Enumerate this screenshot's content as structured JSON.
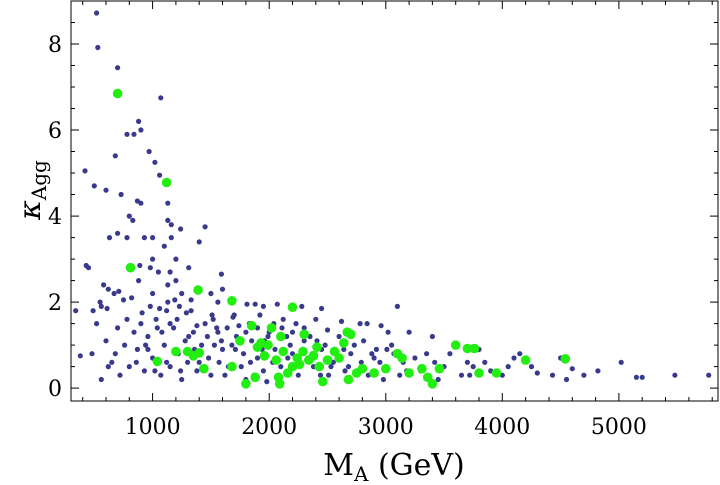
{
  "chart_data": {
    "type": "scatter",
    "title": "",
    "xlabel_main": "M",
    "xlabel_sub": "A",
    "xlabel_unit": " (GeV)",
    "ylabel_main": "κ",
    "ylabel_sub": "Agg",
    "xlim": [
      300,
      5850
    ],
    "ylim": [
      -0.3,
      9.0
    ],
    "xticks": [
      1000,
      2000,
      3000,
      4000,
      5000
    ],
    "xtick_labels": [
      "1000",
      "2000",
      "3000",
      "4000",
      "5000"
    ],
    "yticks": [
      0,
      2,
      4,
      6,
      8
    ],
    "ytick_labels": [
      "0",
      "2",
      "4",
      "6",
      "8"
    ],
    "colors": {
      "blue": "#3a3a8c",
      "green": "#22ee11",
      "axis": "#000000"
    },
    "series": [
      {
        "name": "blue",
        "color": "#3a3a8c",
        "marker_size": "small",
        "points": [
          [
            520,
            8.72
          ],
          [
            530,
            7.92
          ],
          [
            700,
            7.45
          ],
          [
            1070,
            6.75
          ],
          [
            880,
            6.2
          ],
          [
            900,
            6.0
          ],
          [
            780,
            5.9
          ],
          [
            840,
            5.9
          ],
          [
            680,
            5.4
          ],
          [
            970,
            5.5
          ],
          [
            1020,
            5.25
          ],
          [
            1060,
            4.95
          ],
          [
            420,
            5.05
          ],
          [
            500,
            4.7
          ],
          [
            600,
            4.6
          ],
          [
            870,
            4.35
          ],
          [
            900,
            4.3
          ],
          [
            1130,
            4.3
          ],
          [
            730,
            4.5
          ],
          [
            800,
            4.0
          ],
          [
            830,
            3.9
          ],
          [
            1130,
            3.9
          ],
          [
            1160,
            3.8
          ],
          [
            1240,
            3.7
          ],
          [
            1450,
            3.75
          ],
          [
            630,
            3.5
          ],
          [
            700,
            3.6
          ],
          [
            780,
            3.5
          ],
          [
            930,
            3.5
          ],
          [
            1000,
            3.5
          ],
          [
            1160,
            3.5
          ],
          [
            1400,
            3.4
          ],
          [
            1100,
            3.3
          ],
          [
            1000,
            3.0
          ],
          [
            1200,
            3.0
          ],
          [
            430,
            2.85
          ],
          [
            450,
            2.8
          ],
          [
            890,
            2.85
          ],
          [
            980,
            2.8
          ],
          [
            1310,
            2.8
          ],
          [
            1050,
            2.7
          ],
          [
            1150,
            2.7
          ],
          [
            1590,
            2.65
          ],
          [
            1200,
            2.5
          ],
          [
            880,
            2.5
          ],
          [
            1130,
            2.4
          ],
          [
            1600,
            2.3
          ],
          [
            580,
            2.4
          ],
          [
            620,
            2.3
          ],
          [
            670,
            2.2
          ],
          [
            710,
            2.25
          ],
          [
            1000,
            2.2
          ],
          [
            1250,
            2.2
          ],
          [
            1500,
            2.2
          ],
          [
            550,
            2.0
          ],
          [
            750,
            2.05
          ],
          [
            1190,
            2.05
          ],
          [
            1330,
            2.05
          ],
          [
            1560,
            2.0
          ],
          [
            1810,
            1.95
          ],
          [
            1880,
            1.95
          ],
          [
            1950,
            1.9
          ],
          [
            2070,
            1.95
          ],
          [
            2280,
            1.9
          ],
          [
            3100,
            1.9
          ],
          [
            560,
            1.9
          ],
          [
            1060,
            1.85
          ],
          [
            1120,
            1.8
          ],
          [
            1230,
            1.9
          ],
          [
            2450,
            1.85
          ],
          [
            340,
            1.8
          ],
          [
            490,
            1.8
          ],
          [
            610,
            1.85
          ],
          [
            910,
            1.75
          ],
          [
            1290,
            1.75
          ],
          [
            1510,
            1.7
          ],
          [
            1690,
            1.65
          ],
          [
            2120,
            1.6
          ],
          [
            2620,
            1.55
          ],
          [
            2780,
            1.5
          ],
          [
            2840,
            1.5
          ],
          [
            2960,
            1.45
          ],
          [
            1040,
            1.4
          ],
          [
            1150,
            1.5
          ],
          [
            1380,
            1.45
          ],
          [
            1550,
            1.4
          ],
          [
            1740,
            1.45
          ],
          [
            1900,
            1.4
          ],
          [
            2300,
            1.4
          ],
          [
            2500,
            1.35
          ],
          [
            3020,
            1.3
          ],
          [
            3200,
            1.3
          ],
          [
            3400,
            1.2
          ],
          [
            3600,
            1.0
          ],
          [
            3800,
            0.9
          ],
          [
            4150,
            0.8
          ],
          [
            4500,
            0.7
          ],
          [
            4700,
            0.3
          ],
          [
            4820,
            0.4
          ],
          [
            5020,
            0.6
          ],
          [
            5150,
            0.25
          ],
          [
            5480,
            0.3
          ],
          [
            5770,
            0.3
          ],
          [
            5200,
            0.25
          ],
          [
            4550,
            0.2
          ],
          [
            4430,
            0.3
          ],
          [
            4300,
            0.35
          ],
          [
            4000,
            0.3
          ],
          [
            4050,
            0.5
          ],
          [
            3900,
            0.4
          ],
          [
            3700,
            0.6
          ],
          [
            3650,
            0.3
          ],
          [
            3500,
            0.5
          ],
          [
            3450,
            0.2
          ],
          [
            3300,
            0.4
          ],
          [
            3150,
            0.6
          ],
          [
            3000,
            0.5
          ],
          [
            2900,
            0.7
          ],
          [
            2850,
            0.3
          ],
          [
            2700,
            0.8
          ],
          [
            2650,
            0.4
          ],
          [
            2550,
            0.6
          ],
          [
            2450,
            0.9
          ],
          [
            2380,
            0.5
          ],
          [
            2300,
            1.1
          ],
          [
            2250,
            0.3
          ],
          [
            2200,
            0.8
          ],
          [
            2150,
            1.2
          ],
          [
            2100,
            0.5
          ],
          [
            2050,
            0.9
          ],
          [
            2000,
            1.3
          ],
          [
            1950,
            0.4
          ],
          [
            1900,
            0.7
          ],
          [
            1850,
            1.1
          ],
          [
            1800,
            0.2
          ],
          [
            1780,
            0.8
          ],
          [
            1720,
            1.2
          ],
          [
            1650,
            0.5
          ],
          [
            1600,
            0.9
          ],
          [
            1560,
            1.3
          ],
          [
            1500,
            0.3
          ],
          [
            1480,
            0.7
          ],
          [
            1420,
            1.0
          ],
          [
            1380,
            0.4
          ],
          [
            1350,
            1.3
          ],
          [
            1300,
            0.6
          ],
          [
            1280,
            1.1
          ],
          [
            1250,
            0.2
          ],
          [
            1220,
            0.8
          ],
          [
            1180,
            1.4
          ],
          [
            1150,
            0.5
          ],
          [
            1100,
            1.0
          ],
          [
            1070,
            0.3
          ],
          [
            1030,
            1.6
          ],
          [
            1000,
            0.7
          ],
          [
            960,
            1.2
          ],
          [
            930,
            0.4
          ],
          [
            900,
            1.5
          ],
          [
            870,
            0.9
          ],
          [
            840,
            1.3
          ],
          [
            800,
            0.5
          ],
          [
            760,
            1.0
          ],
          [
            720,
            0.3
          ],
          [
            700,
            1.4
          ],
          [
            650,
            0.6
          ],
          [
            600,
            1.1
          ],
          [
            560,
            0.2
          ],
          [
            520,
            1.5
          ],
          [
            480,
            0.8
          ],
          [
            380,
            0.75
          ],
          [
            1700,
            1.7
          ],
          [
            1830,
            1.5
          ],
          [
            2400,
            1.6
          ],
          [
            2600,
            1.2
          ],
          [
            3050,
            1.0
          ],
          [
            3250,
            0.7
          ],
          [
            3550,
            0.8
          ],
          [
            3750,
            0.5
          ],
          [
            1940,
            0.9
          ],
          [
            2030,
            0.6
          ],
          [
            2180,
            1.0
          ],
          [
            2330,
            0.7
          ],
          [
            2480,
            1.0
          ],
          [
            2730,
            1.0
          ],
          [
            2920,
            0.9
          ],
          [
            3120,
            0.3
          ],
          [
            3350,
            0.8
          ],
          [
            3850,
            0.6
          ],
          [
            4250,
            0.5
          ],
          [
            4600,
            0.45
          ],
          [
            1400,
            0.6
          ],
          [
            1530,
            1.0
          ],
          [
            1620,
            0.3
          ],
          [
            1760,
            0.5
          ],
          [
            1870,
            0.3
          ],
          [
            1980,
            0.15
          ],
          [
            2080,
            0.3
          ],
          [
            2260,
            0.6
          ],
          [
            2510,
            0.3
          ],
          [
            2790,
            0.6
          ],
          [
            2980,
            0.2
          ],
          [
            3180,
            0.4
          ],
          [
            3420,
            0.6
          ],
          [
            3720,
            0.3
          ],
          [
            4100,
            0.7
          ],
          [
            960,
            0.9
          ],
          [
            1080,
            1.3
          ],
          [
            1210,
            1.6
          ],
          [
            1330,
            1.8
          ],
          [
            1450,
            1.5
          ],
          [
            1590,
            1.1
          ],
          [
            1710,
            0.9
          ],
          [
            1840,
            0.6
          ],
          [
            1960,
            1.1
          ],
          [
            2110,
            1.4
          ],
          [
            2230,
            1.5
          ],
          [
            2350,
            1.2
          ],
          [
            2440,
            0.3
          ],
          [
            2560,
            0.9
          ],
          [
            2680,
            0.5
          ],
          [
            2810,
            1.1
          ],
          [
            2950,
            0.6
          ],
          [
            3070,
            0.8
          ],
          [
            1240,
            0.4
          ],
          [
            1360,
            0.9
          ],
          [
            1470,
            1.2
          ],
          [
            1570,
            0.6
          ],
          [
            1680,
            1.0
          ],
          [
            1800,
            1.3
          ],
          [
            1920,
            1.7
          ],
          [
            2040,
            1.5
          ],
          [
            2160,
            0.7
          ],
          [
            2290,
            0.9
          ],
          [
            2410,
            1.1
          ],
          [
            2530,
            0.5
          ],
          [
            2640,
            0.9
          ],
          [
            2760,
            0.4
          ],
          [
            2880,
            0.8
          ],
          [
            3010,
            0.9
          ],
          [
            1120,
            0.6
          ],
          [
            1020,
            0.4
          ],
          [
            940,
            1.0
          ],
          [
            860,
            0.6
          ],
          [
            780,
            1.6
          ],
          [
            680,
            0.8
          ],
          [
            620,
            0.5
          ],
          [
            820,
            2.1
          ],
          [
            980,
            1.9
          ],
          [
            1130,
            2.0
          ],
          [
            1310,
            1.2
          ],
          [
            1520,
            1.6
          ],
          [
            1640,
            1.4
          ],
          [
            1990,
            1.2
          ],
          [
            2200,
            1.3
          ],
          [
            2370,
            0.8
          ]
        ]
      },
      {
        "name": "green",
        "color": "#22ee11",
        "marker_size": "large",
        "points": [
          [
            700,
            6.85
          ],
          [
            1120,
            4.78
          ],
          [
            810,
            2.8
          ],
          [
            1390,
            2.28
          ],
          [
            1680,
            2.03
          ],
          [
            2200,
            1.88
          ],
          [
            1040,
            0.62
          ],
          [
            1200,
            0.85
          ],
          [
            1300,
            0.85
          ],
          [
            1350,
            0.75
          ],
          [
            1400,
            0.82
          ],
          [
            1440,
            0.45
          ],
          [
            1680,
            0.5
          ],
          [
            1750,
            1.1
          ],
          [
            1800,
            0.1
          ],
          [
            1850,
            1.45
          ],
          [
            1880,
            0.25
          ],
          [
            1900,
            0.95
          ],
          [
            1930,
            1.05
          ],
          [
            1960,
            0.75
          ],
          [
            1990,
            1.0
          ],
          [
            2020,
            1.4
          ],
          [
            2060,
            0.65
          ],
          [
            2080,
            0.25
          ],
          [
            2090,
            0.1
          ],
          [
            2100,
            1.2
          ],
          [
            2120,
            0.85
          ],
          [
            2160,
            0.35
          ],
          [
            2200,
            0.5
          ],
          [
            2240,
            0.7
          ],
          [
            2260,
            0.55
          ],
          [
            2290,
            0.85
          ],
          [
            2300,
            1.25
          ],
          [
            2340,
            0.65
          ],
          [
            2380,
            0.75
          ],
          [
            2410,
            0.95
          ],
          [
            2430,
            0.5
          ],
          [
            2460,
            0.15
          ],
          [
            2500,
            0.65
          ],
          [
            2560,
            0.85
          ],
          [
            2600,
            0.7
          ],
          [
            2640,
            1.05
          ],
          [
            2670,
            1.3
          ],
          [
            2680,
            0.2
          ],
          [
            2700,
            1.25
          ],
          [
            2750,
            0.35
          ],
          [
            2800,
            0.45
          ],
          [
            2900,
            0.35
          ],
          [
            3000,
            0.45
          ],
          [
            3100,
            0.8
          ],
          [
            3140,
            0.7
          ],
          [
            3200,
            0.35
          ],
          [
            3310,
            0.45
          ],
          [
            3360,
            0.25
          ],
          [
            3400,
            0.1
          ],
          [
            3460,
            0.45
          ],
          [
            3600,
            1.0
          ],
          [
            3700,
            0.92
          ],
          [
            3760,
            0.92
          ],
          [
            3800,
            0.35
          ],
          [
            3950,
            0.35
          ],
          [
            4200,
            0.65
          ],
          [
            4540,
            0.68
          ]
        ]
      }
    ]
  }
}
